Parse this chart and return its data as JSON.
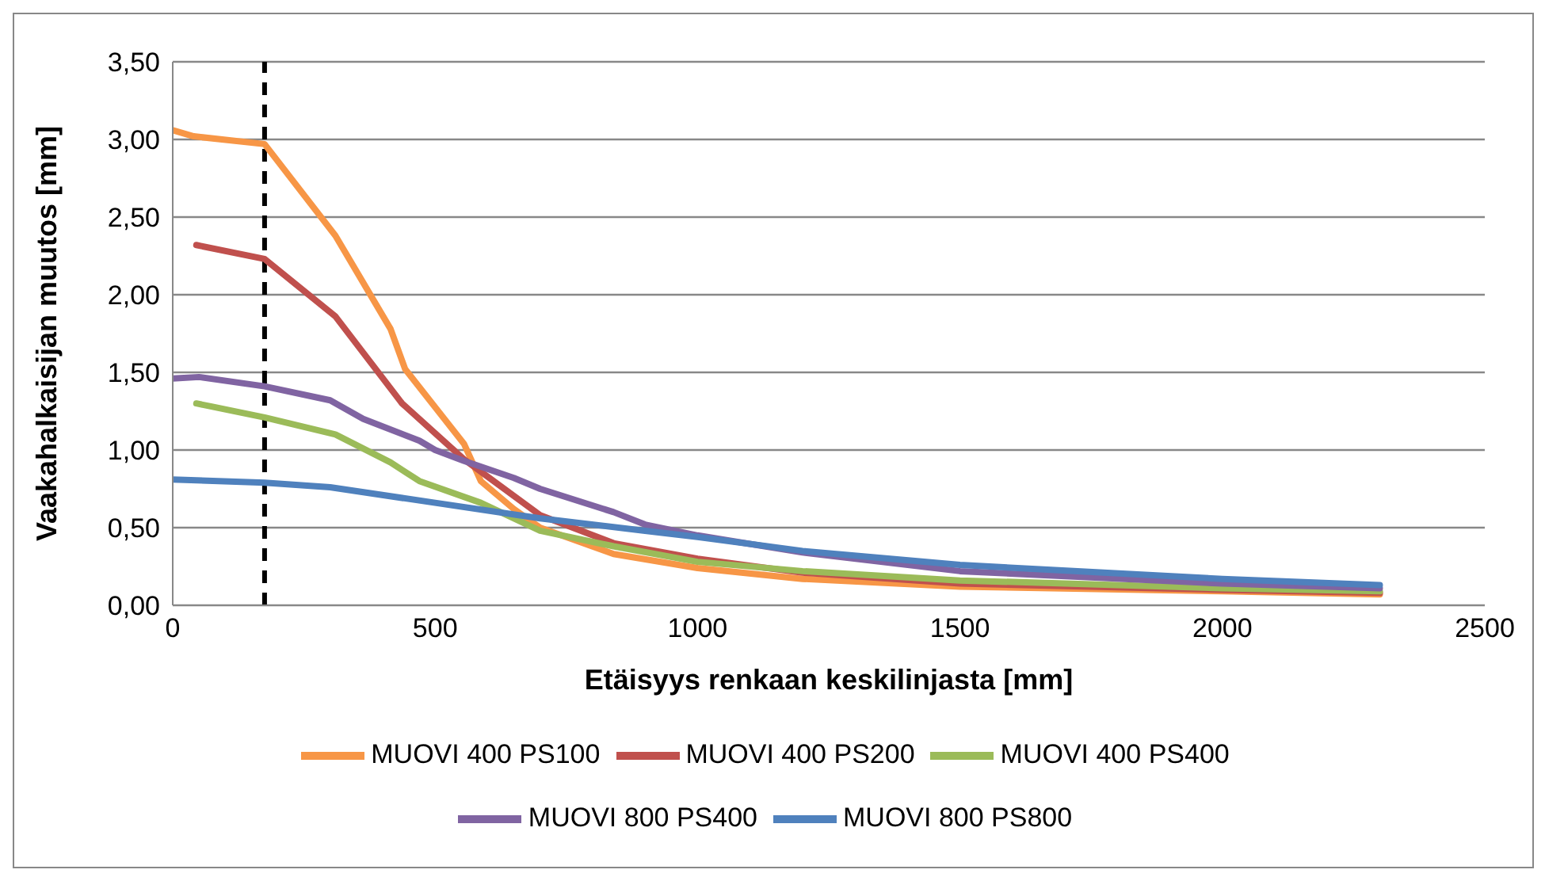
{
  "chart_data": {
    "type": "line",
    "xlabel": "Etäisyys renkaan keskilinjasta [mm]",
    "ylabel": "Vaakahalkaisijan muutos [mm]",
    "xlim": [
      0,
      2500
    ],
    "xticks": [
      0,
      500,
      1000,
      1500,
      2000,
      2500
    ],
    "ylim": [
      0,
      3.5
    ],
    "yticks": [
      {
        "value": 0,
        "label": "0,00"
      },
      {
        "value": 0.5,
        "label": "0,50"
      },
      {
        "value": 1,
        "label": "1,00"
      },
      {
        "value": 1.5,
        "label": "1,50"
      },
      {
        "value": 2,
        "label": "2,00"
      },
      {
        "value": 2.5,
        "label": "2,50"
      },
      {
        "value": 3,
        "label": "3,00"
      },
      {
        "value": 3.5,
        "label": "3,50"
      }
    ],
    "grid": "y",
    "legend": "bottom",
    "marker": "none",
    "line_style": "solid",
    "ref_lines": [
      {
        "axis": "x",
        "value": 175,
        "color": "#000000",
        "line_style": "dashed"
      }
    ],
    "series": [
      {
        "name": "MUOVI 400 PS100",
        "color": "#f79646",
        "x": [
          0,
          40,
          175,
          310,
          415,
          443,
          555,
          587,
          650,
          700,
          840,
          1000,
          1200,
          1500,
          2000,
          2300
        ],
        "values": [
          3.06,
          3.02,
          2.97,
          2.38,
          1.78,
          1.52,
          1.04,
          0.8,
          0.62,
          0.5,
          0.33,
          0.24,
          0.17,
          0.12,
          0.09,
          0.07
        ]
      },
      {
        "name": "MUOVI 400 PS200",
        "color": "#c0504d",
        "x": [
          45,
          175,
          310,
          437,
          555,
          700,
          840,
          1000,
          1200,
          1500,
          2000,
          2300
        ],
        "values": [
          2.32,
          2.23,
          1.86,
          1.3,
          0.94,
          0.58,
          0.4,
          0.3,
          0.21,
          0.14,
          0.1,
          0.08
        ]
      },
      {
        "name": "MUOVI 400 PS400",
        "color": "#9bbb59",
        "x": [
          45,
          175,
          310,
          415,
          470,
          587,
          700,
          840,
          1000,
          1200,
          1500,
          2000,
          2300
        ],
        "values": [
          1.3,
          1.21,
          1.1,
          0.92,
          0.8,
          0.66,
          0.48,
          0.38,
          0.28,
          0.22,
          0.16,
          0.11,
          0.09
        ]
      },
      {
        "name": "MUOVI 800 PS400",
        "color": "#8064a2",
        "x": [
          0,
          50,
          175,
          300,
          363,
          470,
          500,
          555,
          650,
          700,
          840,
          900,
          1000,
          1200,
          1500,
          2000,
          2300
        ],
        "values": [
          1.46,
          1.47,
          1.41,
          1.32,
          1.2,
          1.06,
          1.0,
          0.93,
          0.82,
          0.75,
          0.6,
          0.52,
          0.45,
          0.34,
          0.22,
          0.14,
          0.11
        ]
      },
      {
        "name": "MUOVI 800 PS800",
        "color": "#4f81bd",
        "x": [
          0,
          175,
          300,
          500,
          700,
          900,
          1000,
          1200,
          1500,
          2000,
          2300
        ],
        "values": [
          0.81,
          0.79,
          0.76,
          0.66,
          0.56,
          0.48,
          0.44,
          0.35,
          0.26,
          0.17,
          0.13
        ]
      }
    ]
  }
}
